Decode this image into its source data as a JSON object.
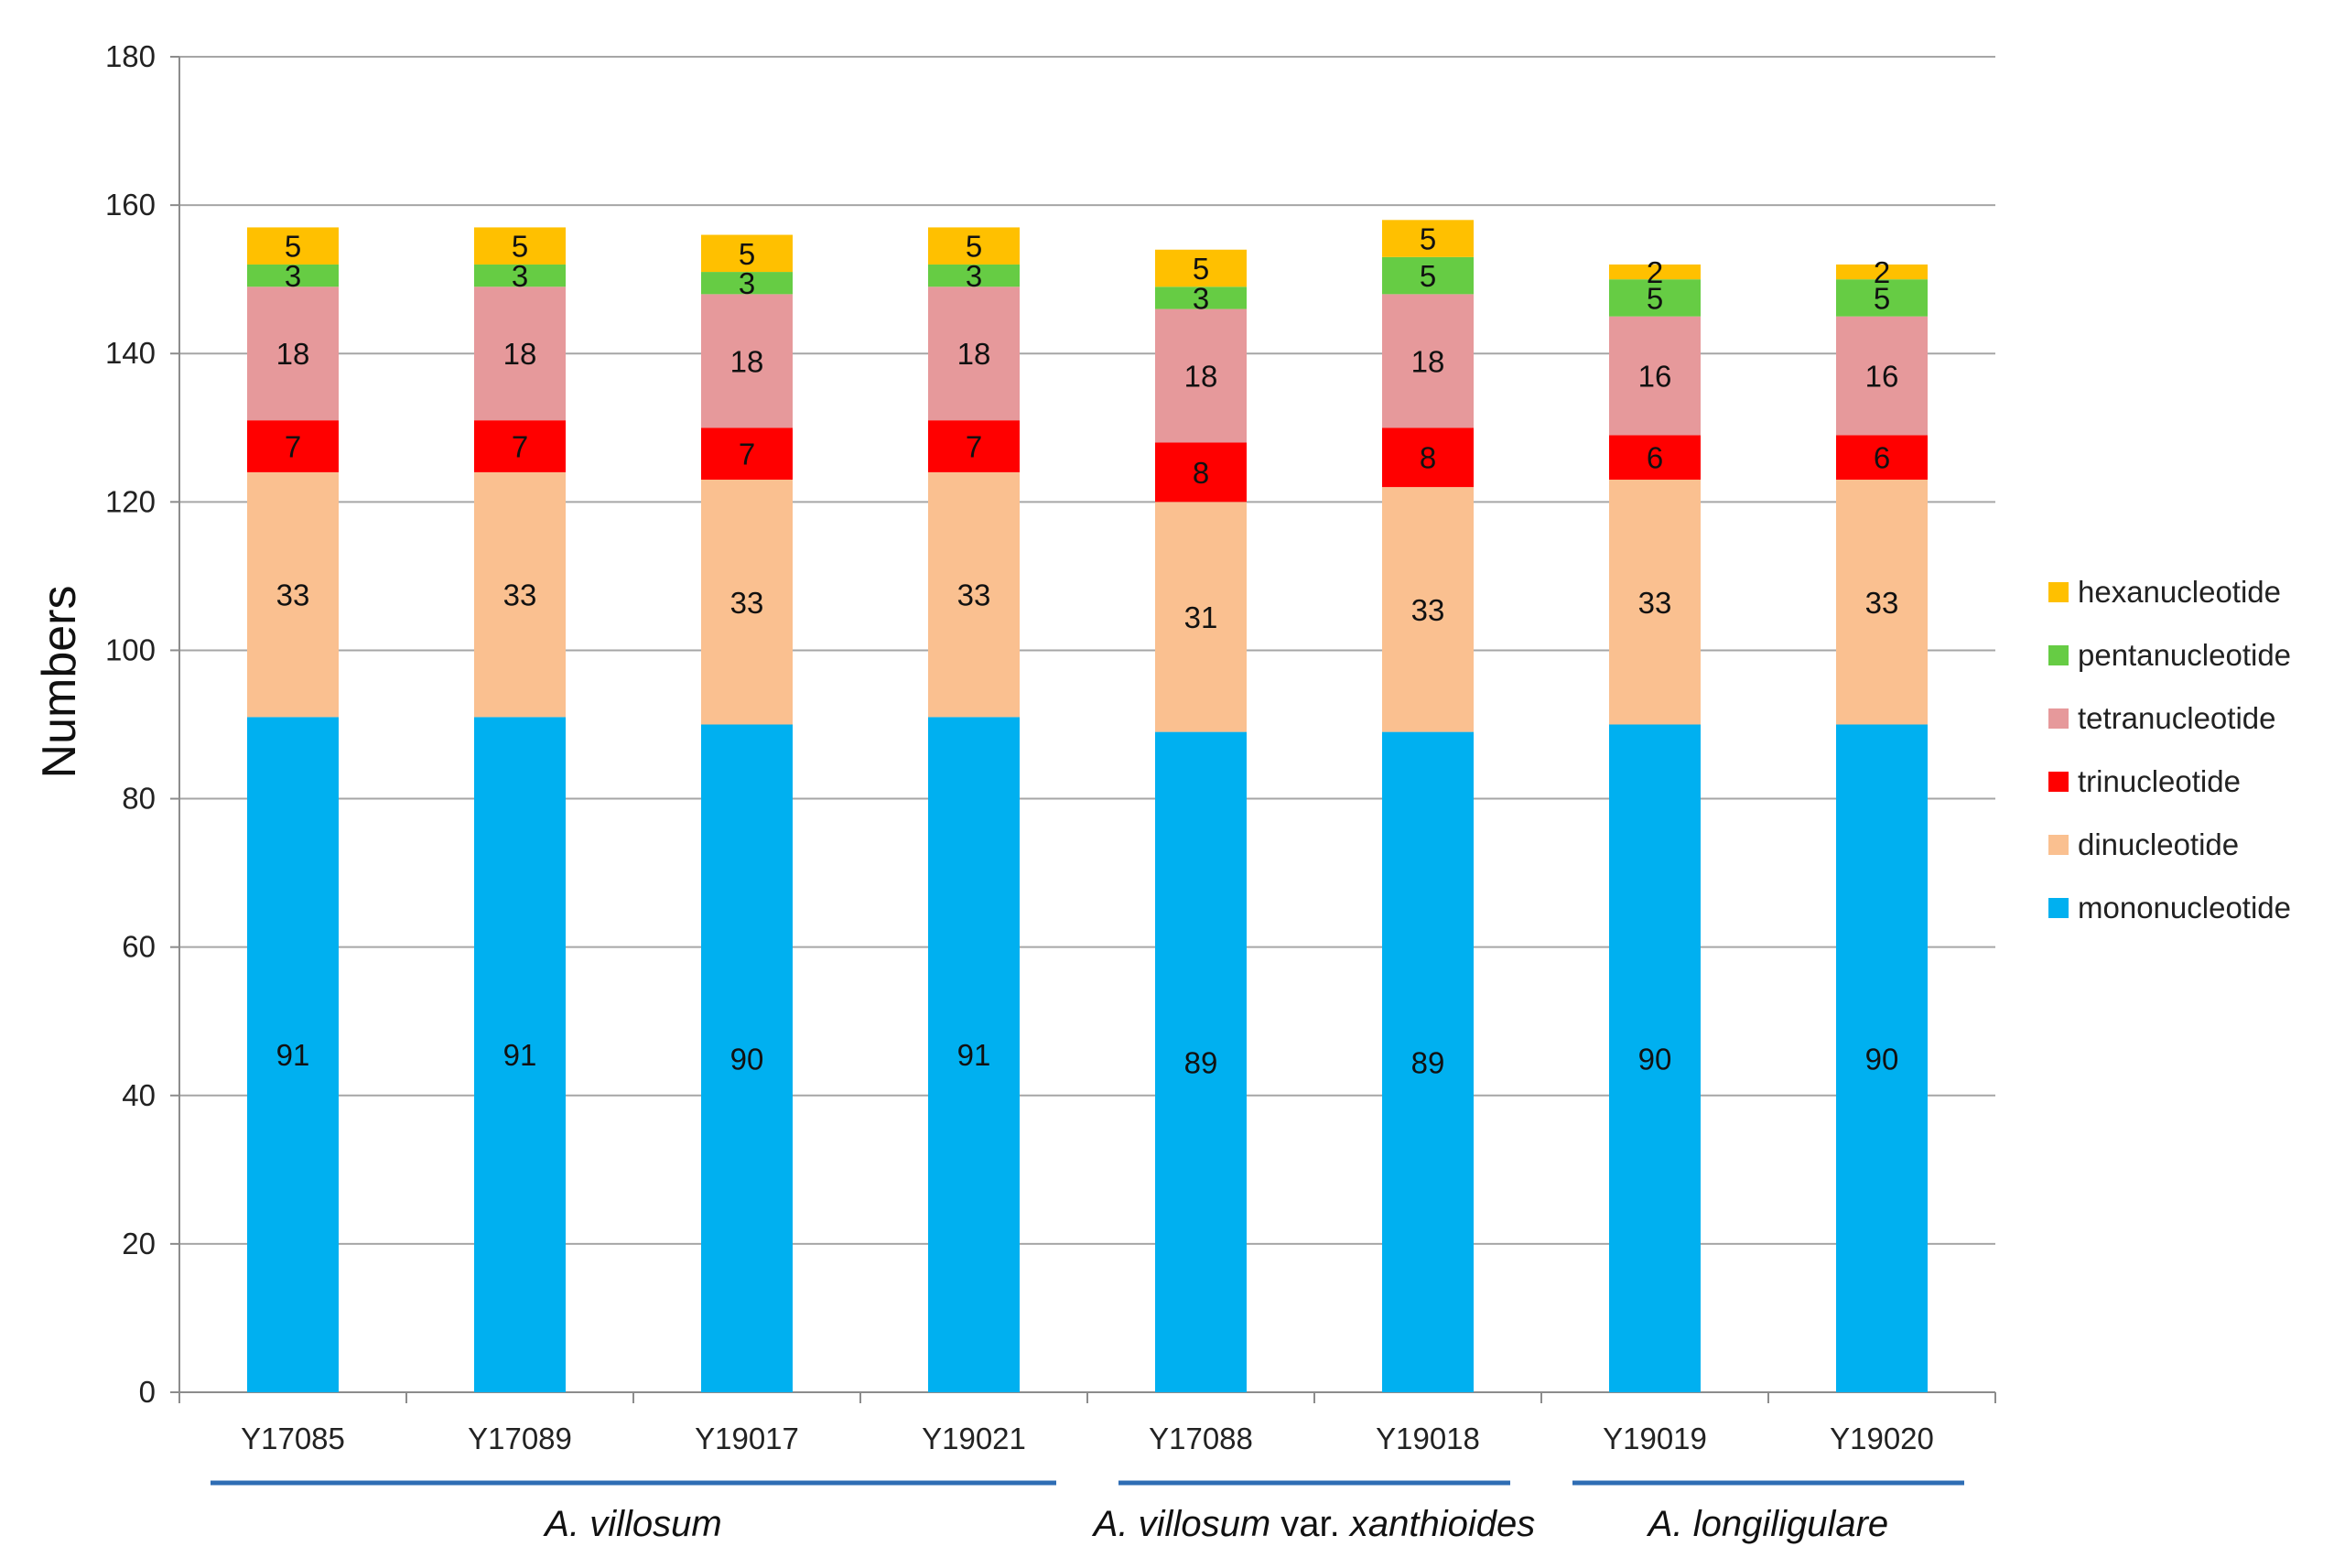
{
  "chart_data": {
    "type": "bar",
    "stacked": true,
    "ylabel": "Numbers",
    "ylim": [
      0,
      180
    ],
    "yticks": [
      0,
      20,
      40,
      60,
      80,
      100,
      120,
      140,
      160,
      180
    ],
    "grid": true,
    "legend_position": "right",
    "categories": [
      "Y17085",
      "Y17089",
      "Y19017",
      "Y19021",
      "Y17088",
      "Y19018",
      "Y19019",
      "Y19020"
    ],
    "series": [
      {
        "name": "mononucleotide",
        "color": "#00B0F0",
        "values": [
          91,
          91,
          90,
          91,
          89,
          89,
          90,
          90
        ]
      },
      {
        "name": "dinucleotide",
        "color": "#FAC090",
        "values": [
          33,
          33,
          33,
          33,
          31,
          33,
          33,
          33
        ]
      },
      {
        "name": "trinucleotide",
        "color": "#FF0000",
        "values": [
          7,
          7,
          7,
          7,
          8,
          8,
          6,
          6
        ]
      },
      {
        "name": "tetranucleotide",
        "color": "#E6999B",
        "values": [
          18,
          18,
          18,
          18,
          18,
          18,
          16,
          16
        ]
      },
      {
        "name": "pentanucleotide",
        "color": "#66CC44",
        "values": [
          3,
          3,
          3,
          3,
          3,
          5,
          5,
          5
        ]
      },
      {
        "name": "hexanucleotide",
        "color": "#FFC000",
        "values": [
          5,
          5,
          5,
          5,
          5,
          5,
          2,
          2
        ]
      }
    ],
    "groups": [
      {
        "parts": [
          {
            "text": "A. villosum",
            "italic": true
          }
        ],
        "start": 0,
        "end": 3
      },
      {
        "parts": [
          {
            "text": "A. villosum",
            "italic": true
          },
          {
            "text": " var. ",
            "italic": false
          },
          {
            "text": "xanthioides",
            "italic": true
          }
        ],
        "start": 4,
        "end": 5
      },
      {
        "parts": [
          {
            "text": "A. longiligulare",
            "italic": true
          }
        ],
        "start": 6,
        "end": 7
      }
    ],
    "group_line_color": "#2E6DB4"
  }
}
